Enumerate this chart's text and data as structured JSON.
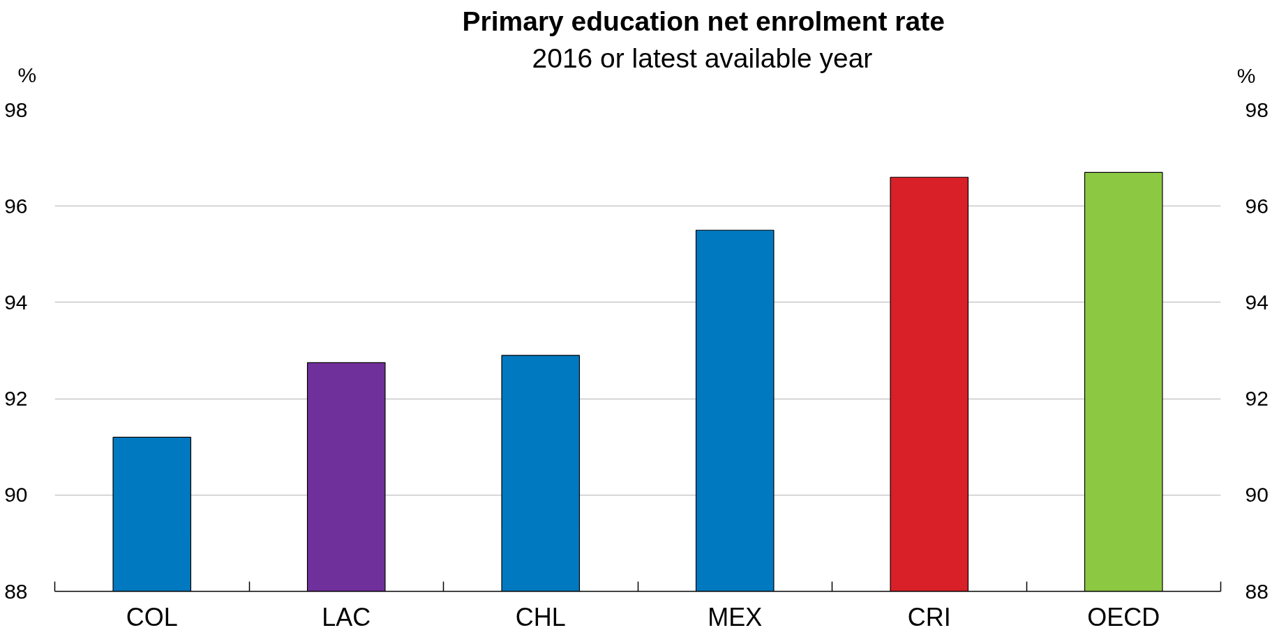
{
  "chart_data": {
    "type": "bar",
    "title": "Primary education net enrolment rate",
    "subtitle": "2016 or latest available year",
    "ylabel": "%",
    "y2label": "%",
    "categories": [
      "COL",
      "LAC",
      "CHL",
      "MEX",
      "CRI",
      "OECD"
    ],
    "values": [
      91.2,
      92.75,
      92.9,
      95.5,
      96.6,
      96.7
    ],
    "colors": [
      "#0179c1",
      "#70309c",
      "#0179c1",
      "#0179c1",
      "#d92028",
      "#8dc843"
    ],
    "ylim": [
      88,
      98
    ],
    "yticks": [
      88,
      90,
      92,
      94,
      96,
      98
    ],
    "y2lim": [
      88,
      98
    ],
    "y2ticks": [
      88,
      90,
      92,
      94,
      96,
      98
    ],
    "grid": "y"
  }
}
